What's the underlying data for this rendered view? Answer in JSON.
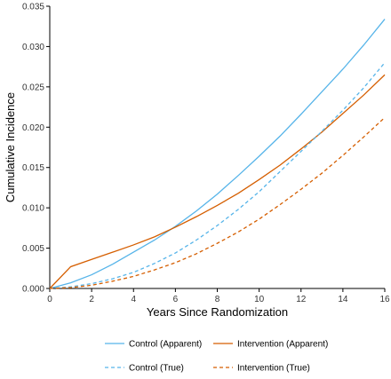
{
  "chart_data": {
    "type": "line",
    "title": "",
    "xlabel": "Years Since Randomization",
    "ylabel": "Cumulative Incidence",
    "xlim": [
      0,
      16
    ],
    "ylim": [
      0,
      0.035
    ],
    "xticks": [
      "0",
      "2",
      "4",
      "6",
      "8",
      "10",
      "12",
      "14",
      "16"
    ],
    "yticks": [
      "0.000",
      "0.005",
      "0.010",
      "0.015",
      "0.020",
      "0.025",
      "0.030",
      "0.035"
    ],
    "grid": false,
    "legend_position": "bottom",
    "series": [
      {
        "name": "Control (Apparent)",
        "color": "#56B4E9",
        "dash": "solid",
        "x": [
          0,
          1,
          2,
          3,
          4,
          5,
          6,
          7,
          8,
          9,
          10,
          11,
          12,
          13,
          14,
          15,
          16
        ],
        "y": [
          0,
          0.0007,
          0.0017,
          0.003,
          0.0045,
          0.006,
          0.0077,
          0.0096,
          0.0117,
          0.014,
          0.0164,
          0.0189,
          0.0216,
          0.0244,
          0.0272,
          0.0302,
          0.0334
        ]
      },
      {
        "name": "Intervention (Apparent)",
        "color": "#D55E00",
        "dash": "solid",
        "x": [
          0,
          1,
          2,
          3,
          4,
          5,
          6,
          7,
          8,
          9,
          10,
          11,
          12,
          13,
          14,
          15,
          16
        ],
        "y": [
          0,
          0.0027,
          0.0036,
          0.0045,
          0.0054,
          0.0064,
          0.0076,
          0.0089,
          0.0103,
          0.0118,
          0.0135,
          0.0153,
          0.0173,
          0.0194,
          0.0217,
          0.024,
          0.0265
        ]
      },
      {
        "name": "Control (True)",
        "color": "#56B4E9",
        "dash": "dashed",
        "x": [
          0,
          1,
          2,
          3,
          4,
          5,
          6,
          7,
          8,
          9,
          10,
          11,
          12,
          13,
          14,
          15,
          16
        ],
        "y": [
          0,
          0.0002,
          0.0006,
          0.0012,
          0.002,
          0.0031,
          0.0044,
          0.006,
          0.0078,
          0.0098,
          0.012,
          0.0145,
          0.017,
          0.0195,
          0.0221,
          0.0249,
          0.028
        ]
      },
      {
        "name": "Intervention (True)",
        "color": "#D55E00",
        "dash": "dashed",
        "x": [
          0,
          1,
          2,
          3,
          4,
          5,
          6,
          7,
          8,
          9,
          10,
          11,
          12,
          13,
          14,
          15,
          16
        ],
        "y": [
          0,
          0.0001,
          0.0004,
          0.0009,
          0.0015,
          0.0023,
          0.0032,
          0.0043,
          0.0056,
          0.007,
          0.0086,
          0.0104,
          0.0123,
          0.0143,
          0.0165,
          0.0188,
          0.0212
        ]
      }
    ]
  }
}
